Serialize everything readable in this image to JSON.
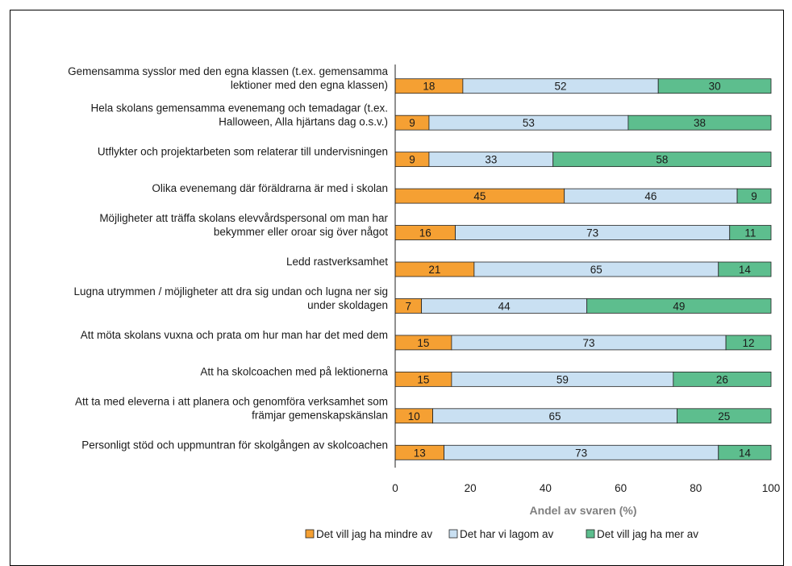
{
  "chart_data": {
    "type": "bar",
    "orientation": "horizontal",
    "stacked": true,
    "categories": [
      [
        "Gemensamma sysslor med den egna klassen (t.ex. gemensamma",
        "lektioner med den egna klassen)"
      ],
      [
        "Hela skolans gemensamma evenemang och temadagar (t.ex.",
        "Halloween, Alla hjärtans dag o.s.v.)"
      ],
      [
        "Utflykter och projektarbeten som relaterar till undervisningen"
      ],
      [
        "Olika evenemang där föräldrarna är med i skolan"
      ],
      [
        "Möjligheter att träffa skolans elevvårdspersonal om man har",
        "bekymmer eller oroar sig över något"
      ],
      [
        "Ledd rastverksamhet"
      ],
      [
        "Lugna utrymmen / möjligheter att dra sig undan och lugna ner sig",
        "under skoldagen"
      ],
      [
        "Att möta skolans vuxna och prata om hur man har det med dem"
      ],
      [
        "Att ha skolcoachen med på lektionerna"
      ],
      [
        "Att ta med eleverna i att planera och genomföra verksamhet som",
        "främjar gemenskapskänslan"
      ],
      [
        "Personligt stöd och uppmuntran för skolgången av skolcoachen"
      ]
    ],
    "series": [
      {
        "name": "Det vill jag ha mindre av",
        "color": "#f5a033",
        "values": [
          18,
          9,
          9,
          45,
          16,
          21,
          7,
          15,
          15,
          10,
          13
        ]
      },
      {
        "name": "Det har vi lagom av",
        "color": "#c9e0f2",
        "values": [
          52,
          53,
          33,
          46,
          73,
          65,
          44,
          73,
          59,
          65,
          73
        ]
      },
      {
        "name": "Det vill jag ha mer av",
        "color": "#5dbe8e",
        "values": [
          30,
          38,
          58,
          9,
          11,
          14,
          49,
          12,
          26,
          25,
          14
        ]
      }
    ],
    "xlabel": "Andel av svaren (%)",
    "xlim": [
      0,
      100
    ],
    "xticks": [
      0,
      20,
      40,
      60,
      80,
      100
    ],
    "legend_position": "bottom",
    "grid": false
  }
}
